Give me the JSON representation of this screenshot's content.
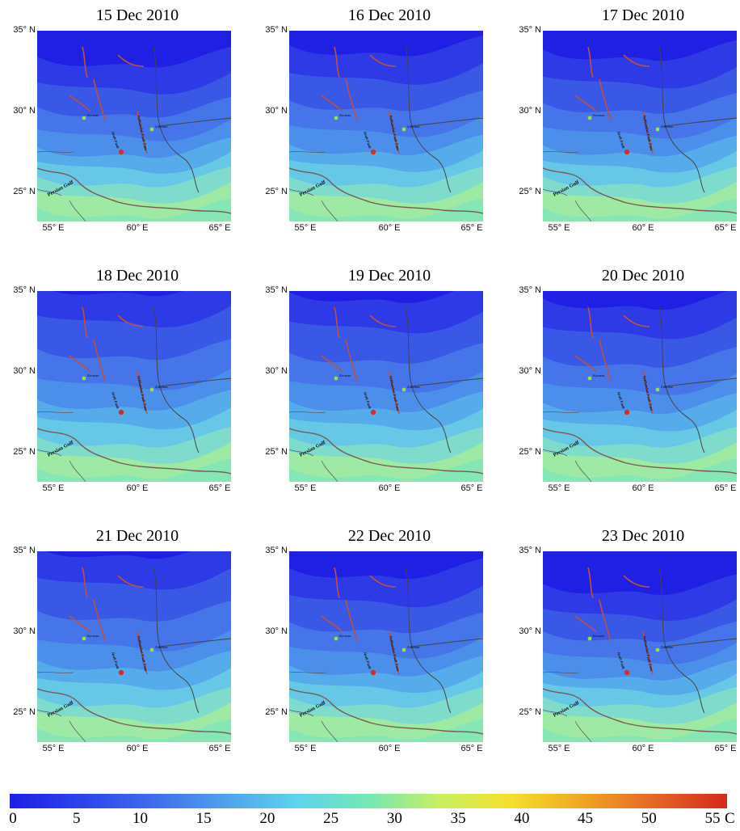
{
  "panels": [
    {
      "title": "15 Dec 2010"
    },
    {
      "title": "16 Dec 2010"
    },
    {
      "title": "17 Dec 2010"
    },
    {
      "title": "18 Dec 2010"
    },
    {
      "title": "19 Dec 2010"
    },
    {
      "title": "20 Dec 2010"
    },
    {
      "title": "21 Dec 2010"
    },
    {
      "title": "22 Dec 2010"
    },
    {
      "title": "23 Dec 2010"
    }
  ],
  "lat_ticks": [
    "35° N",
    "30° N",
    "25° N"
  ],
  "lon_ticks": [
    "55° E",
    "60° E",
    "65° E"
  ],
  "map_labels": {
    "sea": "Persian Gulf",
    "city_west": "Kerman",
    "city_east": "Zahedan",
    "fault_west": "Jiroft Fault",
    "fault_east": "Nehbandan Fault Zone"
  },
  "colorbar": {
    "unit": "C",
    "labels": [
      "0",
      "5",
      "10",
      "15",
      "20",
      "25",
      "30",
      "35",
      "40",
      "45",
      "50",
      "55"
    ]
  },
  "colors": {
    "cold": "#1e1ee6",
    "warm": "#7be6a8",
    "epicenter": "#d32f1e",
    "city": "#9cdc46",
    "border": "#444444",
    "fault": "#c0503c"
  }
}
